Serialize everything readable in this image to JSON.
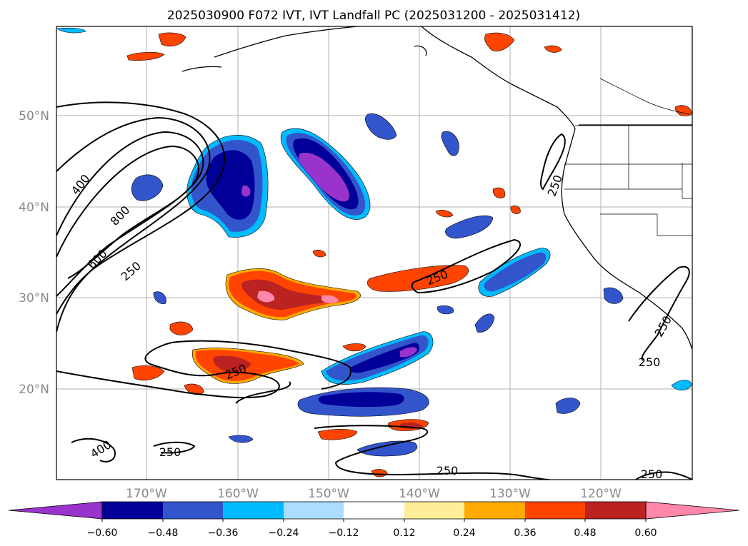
{
  "title": "2025030900 F072 IVT, IVT Landfall PC (2025031200 - 2025031412)",
  "lat_ticks": [
    "50°N",
    "40°N",
    "30°N",
    "20°N"
  ],
  "lon_ticks": [
    "170°W",
    "160°W",
    "150°W",
    "140°W",
    "130°W",
    "120°W"
  ],
  "colorbar": {
    "colors": [
      "#9933cc",
      "#000099",
      "#3355cc",
      "#00bbff",
      "#aaddff",
      "#ffffff",
      "#ffee99",
      "#ffaa00",
      "#ff4400",
      "#bb2222",
      "#ff88aa"
    ],
    "labels": [
      "−0.60",
      "−0.48",
      "−0.36",
      "−0.24",
      "−0.12",
      "0.12",
      "0.24",
      "0.36",
      "0.48",
      "0.60"
    ]
  },
  "contour_labels": [
    "400",
    "800",
    "600",
    "250",
    "250",
    "250",
    "250",
    "250",
    "400",
    "250",
    "250",
    "250",
    "250"
  ]
}
